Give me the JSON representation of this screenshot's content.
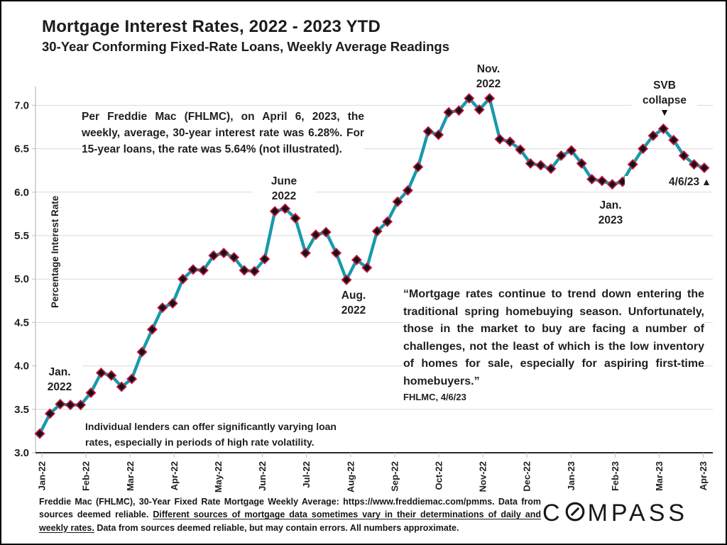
{
  "header": {
    "title": "Mortgage Interest Rates, 2022 - 2023 YTD",
    "subtitle": "30-Year Conforming Fixed-Rate Loans, Weekly Average Readings"
  },
  "chart_data": {
    "type": "line",
    "title": "Mortgage Interest Rates, 2022 - 2023 YTD",
    "subtitle": "30-Year Conforming Fixed-Rate Loans, Weekly Average Readings",
    "ylabel": "Percentage Interest Rate",
    "ylim": [
      3.0,
      7.2
    ],
    "grid": true,
    "legend": false,
    "y_ticks": [
      "3.0",
      "3.5",
      "4.0",
      "4.5",
      "5.0",
      "5.5",
      "6.0",
      "6.5",
      "7.0"
    ],
    "x_tick_labels": [
      "Jan-22",
      "Feb-22",
      "Mar-22",
      "Apr-22",
      "May-22",
      "Jun-22",
      "Jul-22",
      "Aug-22",
      "Sep-22",
      "Oct-22",
      "Nov-22",
      "Dec-22",
      "Jan-23",
      "Feb-23",
      "Mar-23",
      "Apr-23"
    ],
    "series": [
      {
        "name": "30-Year Fixed Rate Mortgage Weekly Average (%)",
        "x_unit": "week",
        "values": [
          3.22,
          3.45,
          3.56,
          3.55,
          3.55,
          3.69,
          3.92,
          3.89,
          3.76,
          3.85,
          4.16,
          4.42,
          4.67,
          4.72,
          5.0,
          5.11,
          5.1,
          5.27,
          5.3,
          5.25,
          5.1,
          5.09,
          5.23,
          5.78,
          5.81,
          5.7,
          5.3,
          5.51,
          5.54,
          5.3,
          4.99,
          5.22,
          5.13,
          5.55,
          5.66,
          5.89,
          6.02,
          6.29,
          6.7,
          6.66,
          6.92,
          6.94,
          7.08,
          6.95,
          7.08,
          6.61,
          6.58,
          6.49,
          6.33,
          6.31,
          6.27,
          6.42,
          6.48,
          6.33,
          6.15,
          6.13,
          6.09,
          6.12,
          6.32,
          6.5,
          6.65,
          6.73,
          6.6,
          6.42,
          6.32,
          6.28
        ]
      }
    ],
    "colors": {
      "line": "#1899ac",
      "marker_fill": "#141414",
      "marker_stroke": "#c41642",
      "grid": "#d9d9d9",
      "axis_dark": "#2b2b2b",
      "axis_light": "#bfbfbf"
    }
  },
  "annotations": {
    "jan_2022": {
      "lines": [
        "Jan.",
        "2022"
      ]
    },
    "june_2022": {
      "lines": [
        "June",
        "2022"
      ]
    },
    "aug_2022": {
      "lines": [
        "Aug.",
        "2022"
      ]
    },
    "nov_2022": {
      "lines": [
        "Nov.",
        "2022"
      ]
    },
    "jan_2023": {
      "lines": [
        "Jan.",
        "2023"
      ]
    },
    "svb": {
      "lines": [
        "SVB",
        "collapse"
      ],
      "marker": "▼"
    },
    "last_point": {
      "label": "4/6/23",
      "marker": "▲"
    }
  },
  "notes": {
    "freddie": "Per Freddie Mac (FHLMC), on April 6, 2023, the weekly, average, 30-year interest rate was 6.28%. For 15-year loans, the rate was 5.64% (not illustrated).",
    "lenders_lines": [
      "Individual lenders can offer significantly varying loan",
      "rates, especially in periods of high rate volatility."
    ]
  },
  "quote": {
    "text": "“Mortgage rates continue to trend down entering the traditional spring homebuying season. Unfortunately, those in the market to buy are facing a number of challenges, not the least of which is the low inventory of homes for sale, especially for aspiring first-time homebuyers.”",
    "attribution": "FHLMC, 4/6/23"
  },
  "footer": {
    "pre": "Freddie Mac (FHLMC), 30-Year Fixed Rate Mortgage Weekly Average:  https://www.freddiemac.com/pmms. Data from sources deemed reliable. ",
    "underlined": "Different sources of mortgage data sometimes vary in their determinations of daily and weekly rates.",
    "post": " Data from sources deemed reliable, but may contain errors. All numbers approximate."
  },
  "logo": {
    "pre": "C",
    "post": "MPASS"
  }
}
